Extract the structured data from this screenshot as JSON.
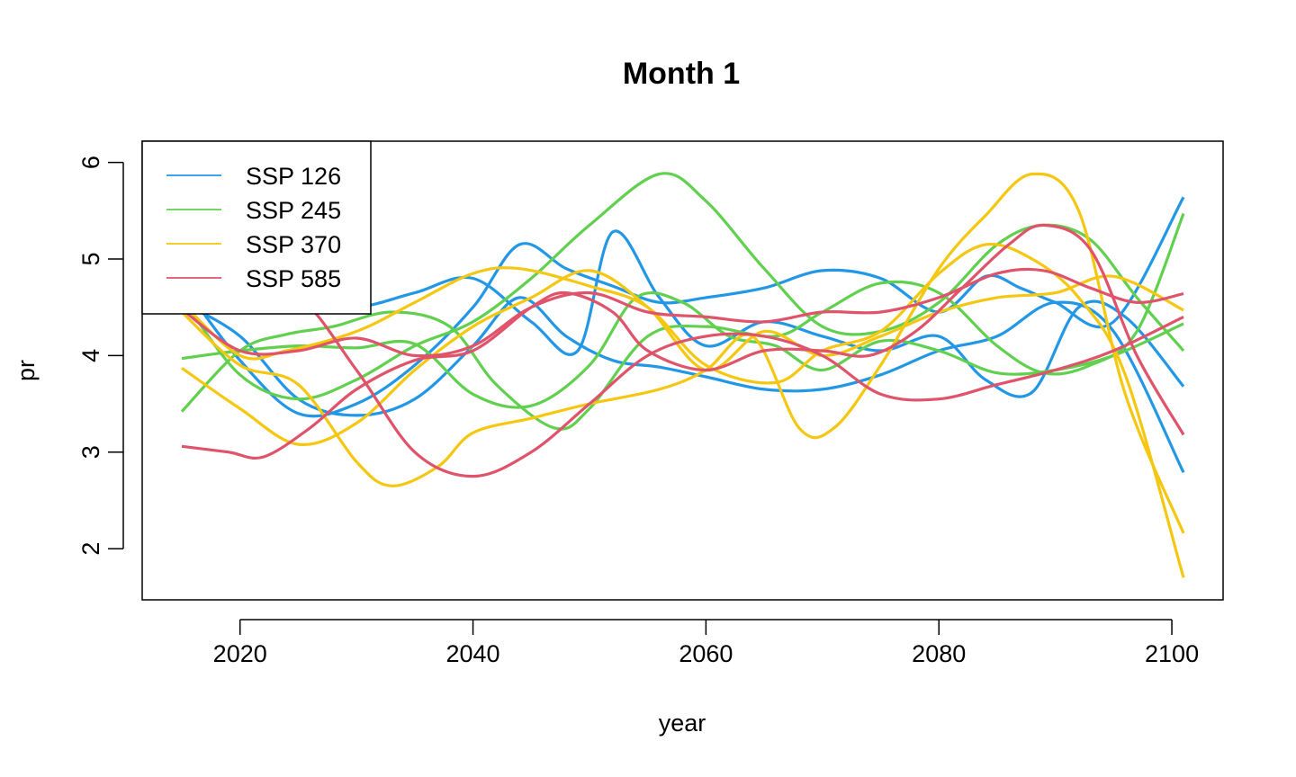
{
  "chart_data": {
    "type": "line",
    "title": "Month 1",
    "xlabel": "year",
    "ylabel": "pr",
    "xlim": [
      2011.6,
      2104.4
    ],
    "ylim": [
      1.47,
      6.22
    ],
    "xticks": [
      2020,
      2040,
      2060,
      2080,
      2100
    ],
    "yticks": [
      2,
      3,
      4,
      5,
      6
    ],
    "grid": false,
    "legend_position": "top-left",
    "legend": [
      {
        "label": "SSP 126",
        "color": "#2297E6"
      },
      {
        "label": "SSP 245",
        "color": "#61D04F"
      },
      {
        "label": "SSP 370",
        "color": "#F5C710"
      },
      {
        "label": "SSP 585",
        "color": "#DF536B"
      }
    ],
    "series": [
      {
        "group": "SSP 126",
        "color": "#2297E6",
        "points": [
          [
            2015,
            4.75
          ],
          [
            2020,
            3.95
          ],
          [
            2025,
            3.4
          ],
          [
            2030,
            3.5
          ],
          [
            2035,
            3.9
          ],
          [
            2040,
            4.5
          ],
          [
            2044,
            5.15
          ],
          [
            2048,
            4.9
          ],
          [
            2052,
            4.72
          ],
          [
            2056,
            4.55
          ],
          [
            2060,
            4.6
          ],
          [
            2065,
            4.7
          ],
          [
            2070,
            4.88
          ],
          [
            2075,
            4.8
          ],
          [
            2080,
            4.45
          ],
          [
            2084,
            4.82
          ],
          [
            2087,
            4.7
          ],
          [
            2090,
            4.55
          ],
          [
            2095,
            4.35
          ],
          [
            2101,
            5.64
          ]
        ]
      },
      {
        "group": "SSP 126",
        "color": "#2297E6",
        "points": [
          [
            2015,
            4.6
          ],
          [
            2020,
            4.7
          ],
          [
            2025,
            4.55
          ],
          [
            2030,
            4.5
          ],
          [
            2035,
            4.65
          ],
          [
            2040,
            4.8
          ],
          [
            2045,
            4.35
          ],
          [
            2049,
            4.05
          ],
          [
            2052,
            5.28
          ],
          [
            2056,
            4.6
          ],
          [
            2060,
            4.1
          ],
          [
            2065,
            4.35
          ],
          [
            2070,
            4.2
          ],
          [
            2075,
            4.05
          ],
          [
            2080,
            4.2
          ],
          [
            2084,
            3.75
          ],
          [
            2088,
            3.62
          ],
          [
            2092,
            4.5
          ],
          [
            2096,
            4.4
          ],
          [
            2101,
            3.68
          ]
        ]
      },
      {
        "group": "SSP 126",
        "color": "#2297E6",
        "points": [
          [
            2015,
            4.55
          ],
          [
            2020,
            4.2
          ],
          [
            2025,
            3.55
          ],
          [
            2030,
            3.38
          ],
          [
            2035,
            3.55
          ],
          [
            2040,
            4.1
          ],
          [
            2044,
            4.6
          ],
          [
            2048,
            4.2
          ],
          [
            2052,
            3.95
          ],
          [
            2056,
            3.88
          ],
          [
            2060,
            3.78
          ],
          [
            2065,
            3.65
          ],
          [
            2070,
            3.65
          ],
          [
            2075,
            3.8
          ],
          [
            2080,
            4.05
          ],
          [
            2085,
            4.2
          ],
          [
            2090,
            4.55
          ],
          [
            2095,
            4.25
          ],
          [
            2101,
            2.79
          ]
        ]
      },
      {
        "group": "SSP 245",
        "color": "#61D04F",
        "points": [
          [
            2015,
            4.6
          ],
          [
            2020,
            3.8
          ],
          [
            2025,
            3.55
          ],
          [
            2030,
            3.75
          ],
          [
            2035,
            4.1
          ],
          [
            2040,
            4.35
          ],
          [
            2045,
            4.8
          ],
          [
            2050,
            5.35
          ],
          [
            2056,
            5.88
          ],
          [
            2060,
            5.6
          ],
          [
            2065,
            4.9
          ],
          [
            2070,
            4.3
          ],
          [
            2075,
            4.25
          ],
          [
            2080,
            4.55
          ],
          [
            2085,
            5.15
          ],
          [
            2089,
            5.35
          ],
          [
            2093,
            5.2
          ],
          [
            2097,
            4.6
          ],
          [
            2101,
            4.05
          ]
        ]
      },
      {
        "group": "SSP 245",
        "color": "#61D04F",
        "points": [
          [
            2015,
            3.42
          ],
          [
            2020,
            4.05
          ],
          [
            2024,
            4.22
          ],
          [
            2028,
            4.3
          ],
          [
            2033,
            4.45
          ],
          [
            2038,
            4.3
          ],
          [
            2042,
            3.7
          ],
          [
            2047,
            3.25
          ],
          [
            2050,
            3.45
          ],
          [
            2055,
            4.2
          ],
          [
            2060,
            4.3
          ],
          [
            2066,
            4.2
          ],
          [
            2070,
            4.45
          ],
          [
            2075,
            4.75
          ],
          [
            2080,
            4.65
          ],
          [
            2085,
            4.1
          ],
          [
            2089,
            3.82
          ],
          [
            2093,
            3.9
          ],
          [
            2097,
            4.25
          ],
          [
            2101,
            5.47
          ]
        ]
      },
      {
        "group": "SSP 245",
        "color": "#61D04F",
        "points": [
          [
            2015,
            3.97
          ],
          [
            2020,
            4.05
          ],
          [
            2025,
            4.1
          ],
          [
            2030,
            4.08
          ],
          [
            2035,
            4.12
          ],
          [
            2040,
            3.6
          ],
          [
            2045,
            3.48
          ],
          [
            2050,
            3.9
          ],
          [
            2054,
            4.6
          ],
          [
            2058,
            4.55
          ],
          [
            2062,
            4.2
          ],
          [
            2066,
            4.1
          ],
          [
            2070,
            3.85
          ],
          [
            2075,
            4.15
          ],
          [
            2080,
            4.05
          ],
          [
            2085,
            3.82
          ],
          [
            2090,
            3.85
          ],
          [
            2095,
            4.0
          ],
          [
            2101,
            4.33
          ]
        ]
      },
      {
        "group": "SSP 370",
        "color": "#F5C710",
        "points": [
          [
            2015,
            4.55
          ],
          [
            2020,
            4.0
          ],
          [
            2024,
            4.05
          ],
          [
            2030,
            4.25
          ],
          [
            2035,
            4.55
          ],
          [
            2040,
            4.85
          ],
          [
            2044,
            4.9
          ],
          [
            2050,
            4.72
          ],
          [
            2055,
            4.5
          ],
          [
            2060,
            3.9
          ],
          [
            2066,
            3.72
          ],
          [
            2070,
            4.05
          ],
          [
            2075,
            4.25
          ],
          [
            2080,
            4.85
          ],
          [
            2084,
            5.15
          ],
          [
            2088,
            5.0
          ],
          [
            2092,
            4.6
          ],
          [
            2096,
            3.8
          ],
          [
            2101,
            1.7
          ]
        ]
      },
      {
        "group": "SSP 370",
        "color": "#F5C710",
        "points": [
          [
            2015,
            4.45
          ],
          [
            2020,
            3.9
          ],
          [
            2025,
            3.7
          ],
          [
            2030,
            2.9
          ],
          [
            2033,
            2.65
          ],
          [
            2037,
            2.85
          ],
          [
            2040,
            3.2
          ],
          [
            2045,
            3.35
          ],
          [
            2050,
            3.5
          ],
          [
            2056,
            3.65
          ],
          [
            2060,
            3.85
          ],
          [
            2064,
            4.2
          ],
          [
            2068,
            3.25
          ],
          [
            2071,
            3.25
          ],
          [
            2075,
            3.9
          ],
          [
            2080,
            4.9
          ],
          [
            2084,
            5.45
          ],
          [
            2088,
            5.88
          ],
          [
            2092,
            5.5
          ],
          [
            2096,
            3.6
          ],
          [
            2101,
            2.16
          ]
        ]
      },
      {
        "group": "SSP 370",
        "color": "#F5C710",
        "points": [
          [
            2015,
            3.87
          ],
          [
            2020,
            3.45
          ],
          [
            2025,
            3.08
          ],
          [
            2030,
            3.3
          ],
          [
            2035,
            3.85
          ],
          [
            2040,
            4.3
          ],
          [
            2045,
            4.6
          ],
          [
            2050,
            4.88
          ],
          [
            2055,
            4.5
          ],
          [
            2060,
            3.85
          ],
          [
            2065,
            4.25
          ],
          [
            2070,
            4.0
          ],
          [
            2075,
            4.2
          ],
          [
            2080,
            4.45
          ],
          [
            2085,
            4.6
          ],
          [
            2090,
            4.65
          ],
          [
            2095,
            4.82
          ],
          [
            2101,
            4.47
          ]
        ]
      },
      {
        "group": "SSP 585",
        "color": "#DF536B",
        "points": [
          [
            2015,
            4.48
          ],
          [
            2020,
            4.05
          ],
          [
            2025,
            4.05
          ],
          [
            2030,
            4.18
          ],
          [
            2035,
            4.0
          ],
          [
            2040,
            4.1
          ],
          [
            2045,
            4.5
          ],
          [
            2050,
            4.65
          ],
          [
            2055,
            4.45
          ],
          [
            2060,
            4.4
          ],
          [
            2065,
            4.35
          ],
          [
            2070,
            4.45
          ],
          [
            2075,
            4.45
          ],
          [
            2080,
            4.6
          ],
          [
            2085,
            4.85
          ],
          [
            2089,
            4.88
          ],
          [
            2093,
            4.7
          ],
          [
            2097,
            4.55
          ],
          [
            2101,
            4.64
          ]
        ]
      },
      {
        "group": "SSP 585",
        "color": "#DF536B",
        "points": [
          [
            2015,
            3.06
          ],
          [
            2019,
            3.0
          ],
          [
            2022,
            2.95
          ],
          [
            2026,
            3.25
          ],
          [
            2030,
            3.65
          ],
          [
            2035,
            3.95
          ],
          [
            2040,
            4.05
          ],
          [
            2045,
            4.5
          ],
          [
            2048,
            4.65
          ],
          [
            2052,
            4.45
          ],
          [
            2055,
            4.05
          ],
          [
            2060,
            3.85
          ],
          [
            2065,
            4.05
          ],
          [
            2070,
            4.05
          ],
          [
            2074,
            4.0
          ],
          [
            2078,
            4.25
          ],
          [
            2082,
            4.7
          ],
          [
            2086,
            5.15
          ],
          [
            2089,
            5.35
          ],
          [
            2093,
            5.1
          ],
          [
            2097,
            4.0
          ],
          [
            2101,
            3.18
          ]
        ]
      },
      {
        "group": "SSP 585",
        "color": "#DF536B",
        "points": [
          [
            2015,
            4.55
          ],
          [
            2020,
            4.55
          ],
          [
            2025,
            4.6
          ],
          [
            2030,
            3.85
          ],
          [
            2035,
            3.0
          ],
          [
            2040,
            2.75
          ],
          [
            2045,
            3.0
          ],
          [
            2050,
            3.5
          ],
          [
            2055,
            4.0
          ],
          [
            2060,
            4.2
          ],
          [
            2065,
            4.2
          ],
          [
            2070,
            4.0
          ],
          [
            2075,
            3.6
          ],
          [
            2080,
            3.55
          ],
          [
            2085,
            3.7
          ],
          [
            2090,
            3.85
          ],
          [
            2095,
            4.05
          ],
          [
            2101,
            4.4
          ]
        ]
      }
    ]
  }
}
